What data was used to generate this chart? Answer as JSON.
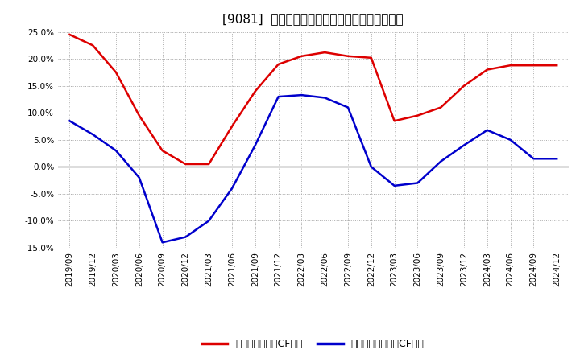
{
  "title": "[9081]  有利子負債キャッシュフロー比率の推移",
  "x_labels": [
    "2019/09",
    "2019/12",
    "2020/03",
    "2020/06",
    "2020/09",
    "2020/12",
    "2021/03",
    "2021/06",
    "2021/09",
    "2021/12",
    "2022/03",
    "2022/06",
    "2022/09",
    "2022/12",
    "2023/03",
    "2023/06",
    "2023/09",
    "2023/12",
    "2024/03",
    "2024/06",
    "2024/09",
    "2024/12"
  ],
  "red_series": [
    0.245,
    0.225,
    0.175,
    0.095,
    0.03,
    0.005,
    0.005,
    0.075,
    0.14,
    0.19,
    0.205,
    0.212,
    0.205,
    0.202,
    0.085,
    0.095,
    0.11,
    0.15,
    0.18,
    0.188,
    0.188,
    0.188
  ],
  "blue_series": [
    0.085,
    0.06,
    0.03,
    -0.02,
    -0.14,
    -0.13,
    -0.1,
    -0.04,
    0.04,
    0.13,
    0.133,
    0.128,
    0.11,
    0.0,
    -0.035,
    -0.03,
    0.01,
    0.04,
    0.068,
    0.05,
    0.015,
    0.015
  ],
  "red_color": "#dd0000",
  "blue_color": "#0000cc",
  "ylim": [
    -0.15,
    0.25
  ],
  "yticks": [
    -0.15,
    -0.1,
    -0.05,
    0.0,
    0.05,
    0.1,
    0.15,
    0.2,
    0.25
  ],
  "legend_red": "有利子負債営業CF比率",
  "legend_blue": "有利子負債フリーCF比率",
  "bg_color": "#ffffff",
  "grid_color": "#aaaaaa",
  "zero_line_color": "#555555",
  "title_fontsize": 11,
  "tick_fontsize": 7.5,
  "legend_fontsize": 9
}
